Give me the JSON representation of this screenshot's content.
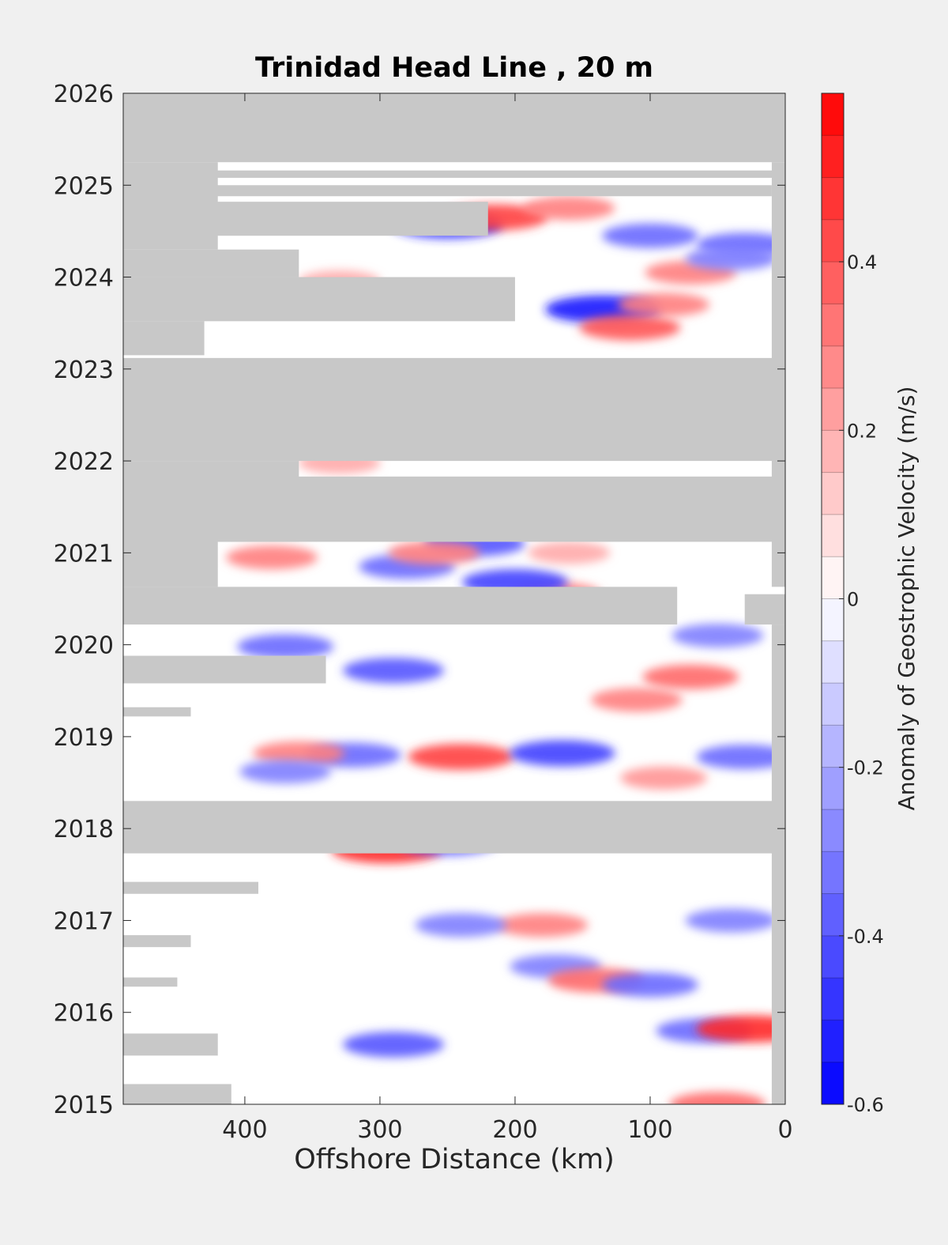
{
  "chart_data": {
    "type": "heatmap",
    "title": "Trinidad Head Line , 20 m",
    "xlabel": "Offshore Distance (km)",
    "ylabel": "",
    "xlim": [
      490,
      0
    ],
    "ylim": [
      2015,
      2026
    ],
    "x_reversed": true,
    "x_ticks": [
      400,
      300,
      200,
      100,
      0
    ],
    "y_ticks": [
      2015,
      2016,
      2017,
      2018,
      2019,
      2020,
      2021,
      2022,
      2023,
      2024,
      2025,
      2026
    ],
    "colorbar": {
      "label": "Anomaly of Geostrophic Velocity (m/s)",
      "range": [
        -0.6,
        0.6
      ],
      "ticks": [
        -0.6,
        -0.4,
        -0.2,
        0,
        0.2,
        0.4
      ],
      "levels": 24,
      "low_color": "#0000ff",
      "mid_color": "#ffffff",
      "high_color": "#ff0000"
    },
    "nodata_color": "#c8c8c8",
    "nodata_regions": [
      {
        "x": [
          490,
          0
        ],
        "y": [
          2025.25,
          2026.0
        ]
      },
      {
        "x": [
          490,
          0
        ],
        "y": [
          2025.08,
          2025.16
        ]
      },
      {
        "x": [
          490,
          10
        ],
        "y": [
          2024.88,
          2025.0
        ]
      },
      {
        "x": [
          490,
          220
        ],
        "y": [
          2024.45,
          2024.82
        ]
      },
      {
        "x": [
          490,
          420
        ],
        "y": [
          2024.3,
          2025.25
        ]
      },
      {
        "x": [
          490,
          360
        ],
        "y": [
          2024.0,
          2024.3
        ]
      },
      {
        "x": [
          490,
          200
        ],
        "y": [
          2023.52,
          2024.0
        ]
      },
      {
        "x": [
          490,
          430
        ],
        "y": [
          2023.15,
          2023.52
        ]
      },
      {
        "x": [
          490,
          0
        ],
        "y": [
          2022.99,
          2023.12
        ]
      },
      {
        "x": [
          490,
          0
        ],
        "y": [
          2022.0,
          2022.99
        ]
      },
      {
        "x": [
          490,
          360
        ],
        "y": [
          2021.12,
          2022.0
        ]
      },
      {
        "x": [
          490,
          0
        ],
        "y": [
          2021.12,
          2021.83
        ]
      },
      {
        "x": [
          490,
          420
        ],
        "y": [
          2020.63,
          2021.12
        ]
      },
      {
        "x": [
          490,
          80
        ],
        "y": [
          2020.22,
          2020.63
        ]
      },
      {
        "x": [
          30,
          0
        ],
        "y": [
          2020.22,
          2020.55
        ]
      },
      {
        "x": [
          490,
          340
        ],
        "y": [
          2019.58,
          2019.88
        ]
      },
      {
        "x": [
          490,
          440
        ],
        "y": [
          2019.22,
          2019.32
        ]
      },
      {
        "x": [
          490,
          0
        ],
        "y": [
          2017.73,
          2018.3
        ]
      },
      {
        "x": [
          490,
          390
        ],
        "y": [
          2017.29,
          2017.42
        ]
      },
      {
        "x": [
          490,
          440
        ],
        "y": [
          2016.71,
          2016.84
        ]
      },
      {
        "x": [
          490,
          450
        ],
        "y": [
          2016.28,
          2016.38
        ]
      },
      {
        "x": [
          490,
          420
        ],
        "y": [
          2015.53,
          2015.77
        ]
      },
      {
        "x": [
          490,
          410
        ],
        "y": [
          2015.0,
          2015.22
        ]
      },
      {
        "x": [
          10,
          0
        ],
        "y": [
          2015.0,
          2020.22
        ]
      },
      {
        "x": [
          10,
          0
        ],
        "y": [
          2020.63,
          2025.25
        ]
      }
    ],
    "anomalies": [
      {
        "x": 295,
        "y": 2017.77,
        "v": 0.5
      },
      {
        "x": 250,
        "y": 2017.85,
        "v": -0.4
      },
      {
        "x": 240,
        "y": 2018.78,
        "v": 0.45
      },
      {
        "x": 165,
        "y": 2018.82,
        "v": -0.45
      },
      {
        "x": 320,
        "y": 2018.8,
        "v": -0.35
      },
      {
        "x": 360,
        "y": 2018.82,
        "v": 0.3
      },
      {
        "x": 370,
        "y": 2018.62,
        "v": -0.3
      },
      {
        "x": 30,
        "y": 2018.78,
        "v": -0.35
      },
      {
        "x": 290,
        "y": 2019.72,
        "v": -0.4
      },
      {
        "x": 370,
        "y": 2019.98,
        "v": -0.35
      },
      {
        "x": 50,
        "y": 2020.1,
        "v": -0.3
      },
      {
        "x": 170,
        "y": 2020.55,
        "v": 0.3
      },
      {
        "x": 200,
        "y": 2020.68,
        "v": -0.45
      },
      {
        "x": 230,
        "y": 2021.1,
        "v": -0.4
      },
      {
        "x": 280,
        "y": 2020.85,
        "v": -0.35
      },
      {
        "x": 260,
        "y": 2021.0,
        "v": 0.3
      },
      {
        "x": 160,
        "y": 2021.0,
        "v": 0.2
      },
      {
        "x": 135,
        "y": 2023.65,
        "v": -0.55
      },
      {
        "x": 115,
        "y": 2023.45,
        "v": 0.4
      },
      {
        "x": 90,
        "y": 2023.7,
        "v": 0.3
      },
      {
        "x": 250,
        "y": 2024.57,
        "v": -0.5
      },
      {
        "x": 215,
        "y": 2024.65,
        "v": 0.45
      },
      {
        "x": 160,
        "y": 2024.75,
        "v": 0.3
      },
      {
        "x": 30,
        "y": 2024.35,
        "v": -0.35
      },
      {
        "x": 60,
        "y": 2015.8,
        "v": -0.35
      },
      {
        "x": 25,
        "y": 2015.82,
        "v": 0.5
      },
      {
        "x": 290,
        "y": 2015.65,
        "v": -0.4
      },
      {
        "x": 170,
        "y": 2016.5,
        "v": -0.3
      },
      {
        "x": 140,
        "y": 2016.35,
        "v": 0.35
      },
      {
        "x": 100,
        "y": 2016.3,
        "v": -0.35
      },
      {
        "x": 180,
        "y": 2016.95,
        "v": 0.3
      },
      {
        "x": 240,
        "y": 2016.95,
        "v": -0.3
      },
      {
        "x": 40,
        "y": 2017.0,
        "v": -0.3
      },
      {
        "x": 110,
        "y": 2019.4,
        "v": 0.3
      },
      {
        "x": 70,
        "y": 2019.65,
        "v": 0.35
      },
      {
        "x": 90,
        "y": 2018.55,
        "v": 0.25
      },
      {
        "x": 330,
        "y": 2021.98,
        "v": 0.2
      },
      {
        "x": 70,
        "y": 2024.05,
        "v": 0.3
      },
      {
        "x": 40,
        "y": 2024.2,
        "v": -0.3
      },
      {
        "x": 100,
        "y": 2024.45,
        "v": -0.35
      },
      {
        "x": 330,
        "y": 2023.95,
        "v": 0.2
      },
      {
        "x": 50,
        "y": 2015.0,
        "v": 0.35
      },
      {
        "x": 380,
        "y": 2020.95,
        "v": 0.3
      }
    ]
  }
}
